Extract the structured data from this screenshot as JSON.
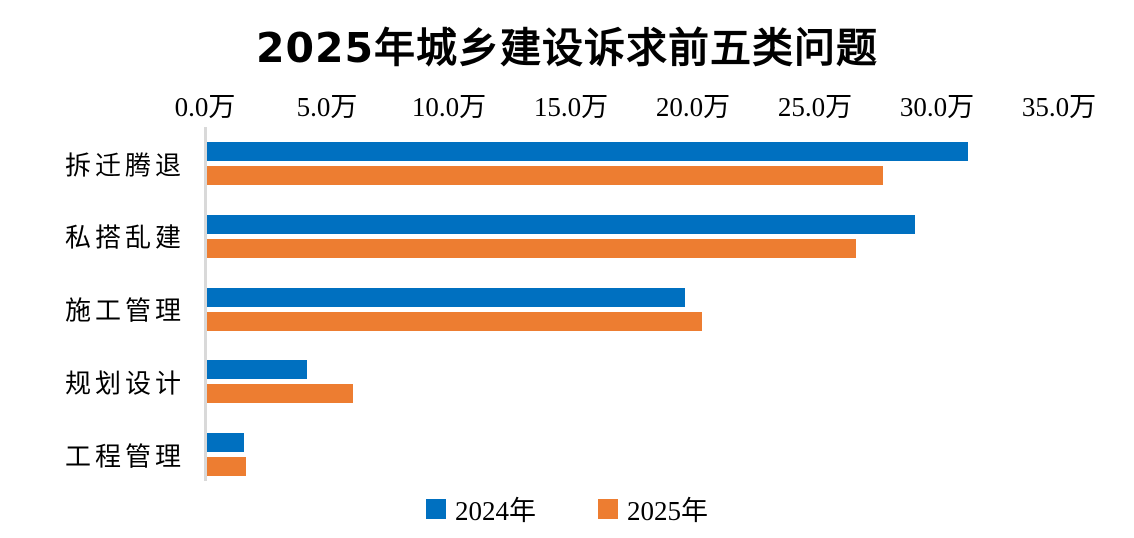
{
  "chart_data": {
    "type": "bar",
    "orientation": "horizontal",
    "title": "2025年城乡建设诉求前五类问题",
    "categories": [
      "拆迁腾退",
      "私搭乱建",
      "施工管理",
      "规划设计",
      "工程管理"
    ],
    "series": [
      {
        "name": "2024年",
        "color": "#0070C0",
        "values": [
          31.2,
          29.0,
          19.6,
          4.1,
          1.5
        ]
      },
      {
        "name": "2025年",
        "color": "#ED7D31",
        "values": [
          27.7,
          26.6,
          20.3,
          6.0,
          1.6
        ]
      }
    ],
    "x_axis": {
      "position": "top",
      "min": 0,
      "max": 35,
      "tick_step": 5,
      "unit": "万",
      "tick_labels": [
        "0.0万",
        "5.0万",
        "10.0万",
        "15.0万",
        "20.0万",
        "25.0万",
        "30.0万",
        "35.0万"
      ]
    },
    "legend": {
      "position": "bottom",
      "entries": [
        "2024年",
        "2025年"
      ]
    },
    "grid": "off",
    "axis_line_color": "#D9D9D9",
    "background_color": "#FFFFFF"
  }
}
